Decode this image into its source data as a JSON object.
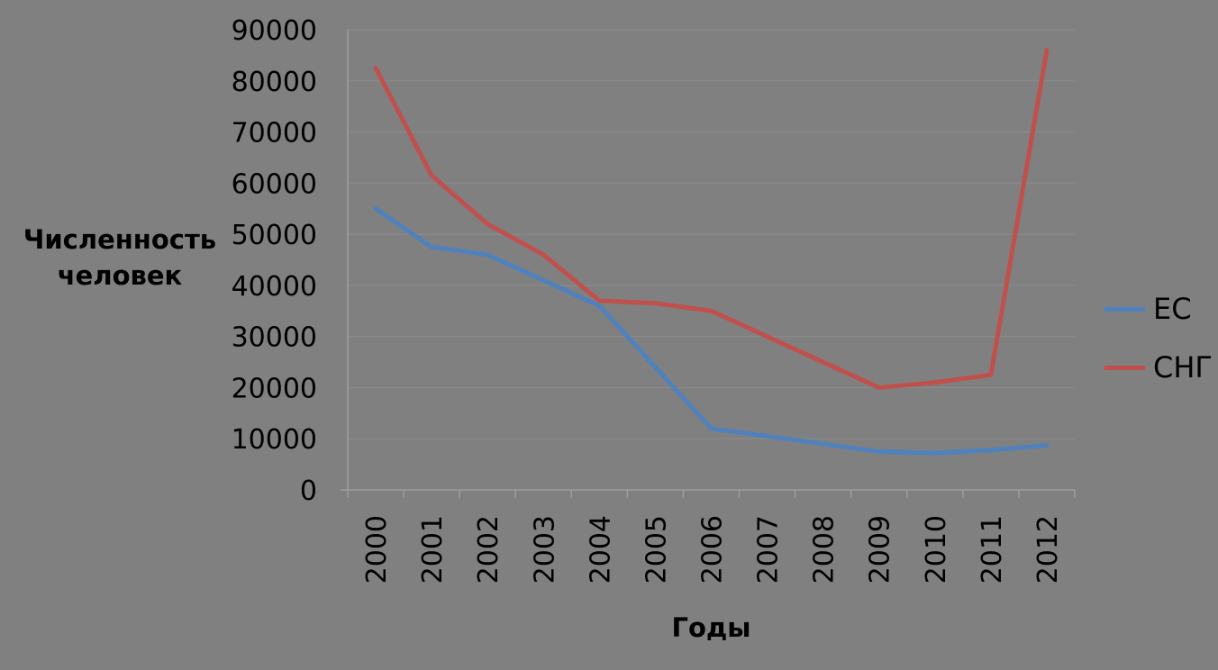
{
  "chart_data": {
    "type": "line",
    "title": "",
    "categories": [
      "2000",
      "2001",
      "2002",
      "2003",
      "2004",
      "2005",
      "2006",
      "2007",
      "2008",
      "2009",
      "2010",
      "2011",
      "2012"
    ],
    "series": [
      {
        "name": "ЕС",
        "color": "#4F81BD",
        "values": [
          55000,
          47500,
          46000,
          41000,
          36000,
          24000,
          12000,
          10500,
          9000,
          7500,
          7200,
          7800,
          8700
        ]
      },
      {
        "name": "СНГ",
        "color": "#C0504D",
        "values": [
          82500,
          61500,
          52000,
          46000,
          37000,
          36500,
          35000,
          30000,
          25000,
          20000,
          21000,
          22500,
          86000
        ]
      }
    ],
    "xlabel": "Годы",
    "ylabel": "Численность человек",
    "ylim": [
      0,
      90000
    ],
    "y_ticks": [
      0,
      10000,
      20000,
      30000,
      40000,
      50000,
      60000,
      70000,
      80000,
      90000
    ],
    "grid": true,
    "legend_position": "right"
  },
  "colors": {
    "background": "#808080",
    "gridline": "#8C8C8C",
    "axis": "#9E9E9E",
    "text": "#000000"
  }
}
